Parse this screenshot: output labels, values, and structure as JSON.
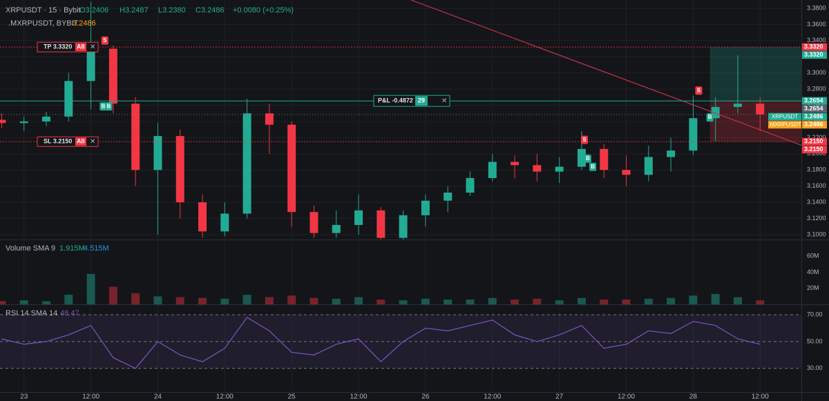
{
  "chart_data": {
    "type": "candlestick",
    "symbol": "XRPUSDT · 15 · Bybit",
    "ohlc_legend": [
      "O3.2406",
      "H3.2487",
      "L3.2380",
      "C3.2486",
      "+0.0080 (+0.25%)"
    ],
    "index_name": ".MXRPUSDT, BYBIT",
    "index_value": "3.2486",
    "x": [
      -4,
      0,
      4,
      8,
      12,
      16,
      20,
      24,
      28,
      32,
      36,
      40,
      44,
      48,
      52,
      56,
      60,
      64,
      68,
      72,
      76,
      80,
      84,
      88,
      92,
      96,
      100,
      104,
      108,
      112,
      116,
      120,
      124,
      128,
      132
    ],
    "open": [
      3.242,
      3.238,
      3.24,
      3.246,
      3.29,
      3.33,
      3.262,
      3.18,
      3.222,
      3.14,
      3.104,
      3.126,
      3.25,
      3.236,
      3.128,
      3.102,
      3.112,
      3.13,
      3.096,
      3.124,
      3.142,
      3.152,
      3.17,
      3.19,
      3.186,
      3.178,
      3.184,
      3.206,
      3.18,
      3.174,
      3.196,
      3.204,
      3.244,
      3.258,
      3.262
    ],
    "high": [
      3.25,
      3.246,
      3.252,
      3.3,
      3.388,
      3.334,
      3.27,
      3.238,
      3.23,
      3.15,
      3.14,
      3.268,
      3.262,
      3.24,
      3.136,
      3.13,
      3.15,
      3.134,
      3.13,
      3.15,
      3.16,
      3.178,
      3.2,
      3.198,
      3.2,
      3.196,
      3.228,
      3.212,
      3.198,
      3.21,
      3.22,
      3.272,
      3.27,
      3.322,
      3.27
    ],
    "low": [
      3.232,
      3.228,
      3.234,
      3.24,
      3.255,
      3.25,
      3.16,
      3.1,
      3.12,
      3.096,
      3.098,
      3.12,
      3.2,
      3.11,
      3.096,
      3.096,
      3.1,
      3.094,
      3.094,
      3.11,
      3.128,
      3.148,
      3.166,
      3.17,
      3.166,
      3.164,
      3.18,
      3.17,
      3.16,
      3.166,
      3.178,
      3.198,
      3.216,
      3.25,
      3.228
    ],
    "close": [
      3.238,
      3.24,
      3.246,
      3.29,
      3.33,
      3.262,
      3.18,
      3.222,
      3.14,
      3.104,
      3.126,
      3.25,
      3.236,
      3.128,
      3.102,
      3.112,
      3.13,
      3.096,
      3.124,
      3.142,
      3.152,
      3.17,
      3.19,
      3.186,
      3.178,
      3.184,
      3.206,
      3.18,
      3.174,
      3.196,
      3.204,
      3.244,
      3.258,
      3.262,
      3.2486
    ],
    "up_color": "#22ab94",
    "down_color": "#f23645",
    "xlim": [
      -4.3,
      139.4
    ],
    "xticks": [
      {
        "value": 0,
        "label": "23"
      },
      {
        "value": 12,
        "label": "12:00"
      },
      {
        "value": 24,
        "label": "24"
      },
      {
        "value": 36,
        "label": "12:00"
      },
      {
        "value": 48,
        "label": "25"
      },
      {
        "value": 60,
        "label": "12:00"
      },
      {
        "value": 72,
        "label": "26"
      },
      {
        "value": 84,
        "label": "12:00"
      },
      {
        "value": 96,
        "label": "27"
      },
      {
        "value": 108,
        "label": "12:00"
      },
      {
        "value": 120,
        "label": "28"
      },
      {
        "value": 132,
        "label": "12:00"
      }
    ],
    "ylim": [
      3.094,
      3.3902
    ],
    "yticks": [
      {
        "value": 3.38,
        "label": "3.3800"
      },
      {
        "value": 3.36,
        "label": "3.3600"
      },
      {
        "value": 3.34,
        "label": "3.3400"
      },
      {
        "value": 3.32,
        "label": "3.3200"
      },
      {
        "value": 3.3,
        "label": "3.3000"
      },
      {
        "value": 3.28,
        "label": "3.2800"
      },
      {
        "value": 3.26,
        "label": "3.2600"
      },
      {
        "value": 3.24,
        "label": "3.2400"
      },
      {
        "value": 3.22,
        "label": "3.2200"
      },
      {
        "value": 3.2,
        "label": "3.2000"
      },
      {
        "value": 3.18,
        "label": "3.1800"
      },
      {
        "value": 3.16,
        "label": "3.1600"
      },
      {
        "value": 3.14,
        "label": "3.1400"
      },
      {
        "value": 3.12,
        "label": "3.1200"
      },
      {
        "value": 3.1,
        "label": "3.1000"
      }
    ],
    "grid": true,
    "orders": [
      {
        "text": "TP 3.3320",
        "tag": "All",
        "price": 3.332
      },
      {
        "text": "SL 3.2150",
        "tag": "All",
        "price": 3.215
      }
    ],
    "position": {
      "text": "P&L -0.4872",
      "qty": "29",
      "price": 3.2654,
      "start_x": 123
    },
    "trendline": {
      "x": [
        69.4,
        139.4
      ],
      "y": [
        3.3902,
        3.2107
      ]
    },
    "trade_markers": [
      {
        "text": "S",
        "x": 14.5,
        "price": 3.34
      },
      {
        "text": "B",
        "x": 14.2,
        "price": 3.2586
      },
      {
        "text": "B",
        "x": 15.2,
        "price": 3.2586
      },
      {
        "text": "S",
        "x": 100.5,
        "price": 3.2172
      },
      {
        "text": "B",
        "x": 101.1,
        "price": 3.194
      },
      {
        "text": "B",
        "x": 102,
        "price": 3.1838
      },
      {
        "text": "S",
        "x": 121,
        "price": 3.2782
      },
      {
        "text": "B",
        "x": 123,
        "price": 3.245
      }
    ],
    "price_tags": [
      {
        "text": "3.3320",
        "price": 3.332,
        "color": "#f23645"
      },
      {
        "text": "3.3320",
        "price": 3.332,
        "color": "#22ab94"
      },
      {
        "text": "3.2654",
        "price": 3.2654,
        "color": "#22ab94"
      },
      {
        "text": "3.2654",
        "price": 3.2654,
        "color": "#5d606b"
      },
      {
        "text": "3.2486",
        "name": "XRPUSDT",
        "price": 3.2486,
        "color": "#22ab94"
      },
      {
        "text": "3.2486",
        "name": ".MXRPUSDT",
        "price": 3.2486,
        "color": "#f7a21b"
      },
      {
        "text": "3.2150",
        "price": 3.215,
        "color": "#f23645"
      },
      {
        "text": "3.2150",
        "price": 3.215,
        "color": "#f23645"
      }
    ],
    "volume": {
      "title": "Volume SMA 9",
      "legend": [
        "1.915M",
        "4.515M"
      ],
      "values": [
        4000000,
        5000000,
        4000000,
        12000000,
        38000000,
        22000000,
        14000000,
        10000000,
        9000000,
        8000000,
        7000000,
        12000000,
        9000000,
        11000000,
        8000000,
        7000000,
        9000000,
        6000000,
        5000000,
        7000000,
        6000000,
        6000000,
        8000000,
        6000000,
        7000000,
        5000000,
        8000000,
        6000000,
        6000000,
        7000000,
        8000000,
        11000000,
        13000000,
        9000000,
        5000000
      ],
      "ylim": [
        0,
        80000000
      ],
      "yticks": [
        {
          "value": 20000000,
          "label": "20M"
        },
        {
          "value": 40000000,
          "label": "40M"
        },
        {
          "value": 60000000,
          "label": "60M"
        }
      ]
    },
    "rsi": {
      "title": "RSI 14 SMA 14",
      "legend": "48.47",
      "color": "#7e57c2",
      "values": [
        52,
        48,
        50,
        55,
        62,
        38,
        30,
        50,
        40,
        35,
        45,
        68,
        58,
        42,
        40,
        48,
        52,
        35,
        50,
        60,
        58,
        62,
        66,
        55,
        50,
        55,
        62,
        45,
        48,
        58,
        56,
        65,
        62,
        52,
        48
      ],
      "ylim": [
        12.4,
        77.2
      ],
      "yticks": [
        {
          "value": 70,
          "label": "70.00"
        },
        {
          "value": 50,
          "label": "50.00"
        },
        {
          "value": 30,
          "label": "30.00"
        }
      ]
    }
  }
}
